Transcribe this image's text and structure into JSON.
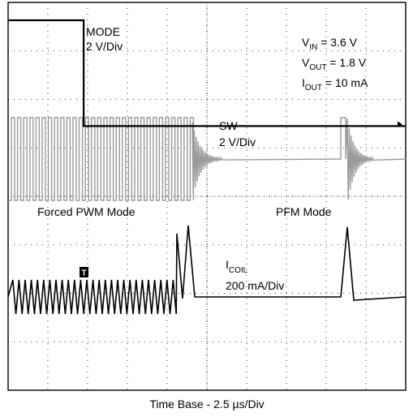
{
  "chart_data": {
    "type": "line",
    "title": "",
    "xlabel": "Time Base - 2.5 µs/Div",
    "grid": true,
    "x_divisions": 10,
    "y_divisions": 8,
    "x_unit": "µs",
    "x_per_div": 2.5,
    "series": [
      {
        "name": "MODE",
        "scale": "2 V/Div",
        "color": "#000000",
        "description_points": [
          [
            0,
            3.55
          ],
          [
            3.6,
            3.55
          ],
          [
            3.6,
            1.12
          ],
          [
            10,
            1.12
          ]
        ]
      },
      {
        "name": "SW",
        "scale": "2 V/Div",
        "color": "#9a9a9a",
        "switching_until_div": 5.7,
        "burst_div": 10.3,
        "high_div": 2.85,
        "low_div": 1.55
      },
      {
        "name": "I_COIL",
        "scale": "200 mA/Div",
        "color": "#000000",
        "ripple_until_div": 4.9,
        "pfm_pulse_div": 10.3,
        "baseline_div": 4.55
      }
    ],
    "annotations": {
      "mode_label": "MODE",
      "mode_scale": "2 V/Div",
      "vin_main": "V",
      "vin_sub": "IN",
      "vin_value": " = 3.6 V",
      "vout_main": "V",
      "vout_sub": "OUT",
      "vout_value": " = 1.8 V",
      "iout_main": "I",
      "iout_sub": "OUT",
      "iout_value": " = 10 mA",
      "sw_label": "SW",
      "sw_scale": "2 V/Div",
      "forced_pwm": "Forced PWM Mode",
      "pfm": "PFM Mode",
      "icoil_main": "I",
      "icoil_sub": "COIL",
      "icoil_scale": "200 mA/Div",
      "trigger": "T"
    }
  }
}
